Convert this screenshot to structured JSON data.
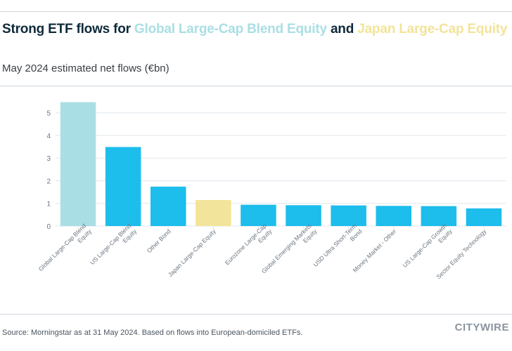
{
  "header": {
    "title_parts": [
      {
        "text": "Strong ETF flows for ",
        "color": "#0e2a3a"
      },
      {
        "text": "Global Large-Cap Blend Equity",
        "color": "#a9dfe4"
      },
      {
        "text": " and ",
        "color": "#0e2a3a"
      },
      {
        "text": "Japan Large-Cap Equity",
        "color": "#f2e49a"
      }
    ],
    "subtitle": "May 2024 estimated net flows (€bn)"
  },
  "footer": {
    "source": "Source: Morningstar as at 31 May 2024. Based on flows into European-domiciled ETFs.",
    "logo": "CITYWIRE"
  },
  "chart_data": {
    "type": "bar",
    "title": "Strong ETF flows for Global Large-Cap Blend Equity and Japan Large-Cap Equity",
    "subtitle": "May 2024 estimated net flows (€bn)",
    "xlabel": "",
    "ylabel": "",
    "ylim": [
      0,
      5.5
    ],
    "yticks": [
      0,
      1,
      2,
      3,
      4,
      5
    ],
    "grid": true,
    "categories": [
      [
        "Global Large-Cap Blend",
        "Equity"
      ],
      [
        "US Large-Cap Blend",
        "Equity"
      ],
      [
        "Other Bond"
      ],
      [
        "Japan Large-Cap Equity"
      ],
      [
        "Eurozone Large-Cap",
        "Equity"
      ],
      [
        "Global Emerging Markets",
        "Equity"
      ],
      [
        "USD Ultra Short-Term",
        "Bond"
      ],
      [
        "Money Market - Other"
      ],
      [
        "US Large-Cap Growth",
        "Equity"
      ],
      [
        "Sector Equity Technology"
      ]
    ],
    "values": [
      5.47,
      3.49,
      1.74,
      1.15,
      0.94,
      0.92,
      0.91,
      0.89,
      0.88,
      0.78
    ],
    "colors": [
      "#a9dfe4",
      "#1dbdec",
      "#1dbdec",
      "#f2e49a",
      "#1dbdec",
      "#1dbdec",
      "#1dbdec",
      "#1dbdec",
      "#1dbdec",
      "#1dbdec"
    ]
  }
}
